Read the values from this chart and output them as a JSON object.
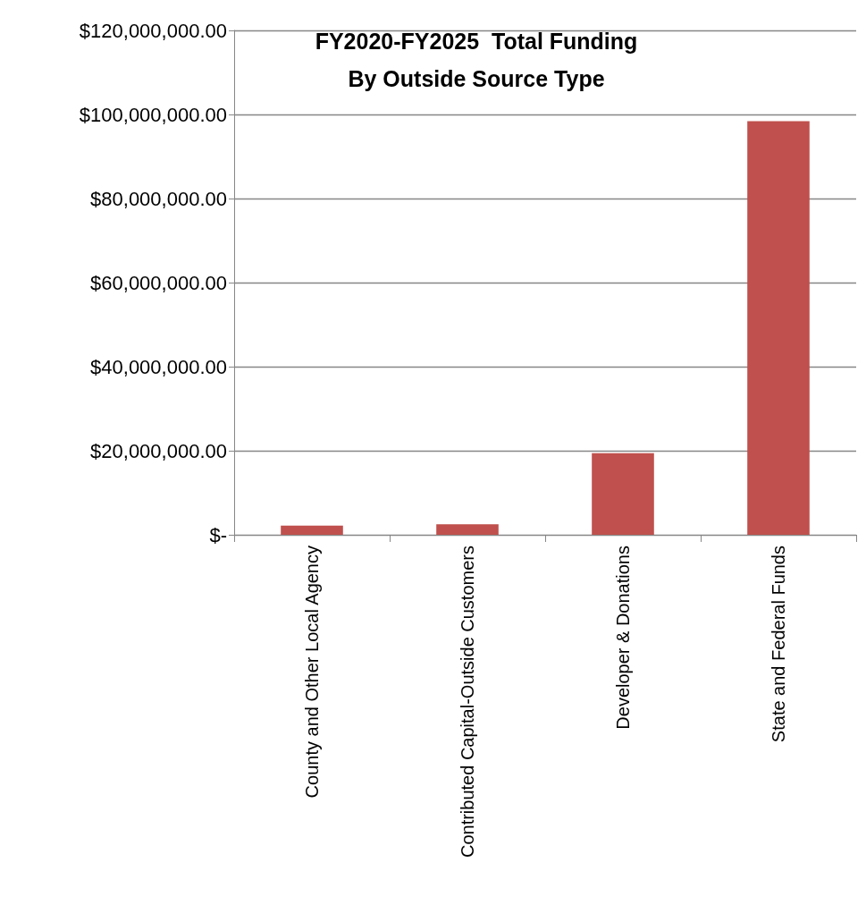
{
  "chart_data": {
    "type": "bar",
    "title": "FY2020-FY2025  Total Funding\nBy Outside Source Type",
    "categories": [
      "County and Other Local Agency",
      "Contributed Capital-Outside Customers",
      "Developer & Donations",
      "State and Federal Funds"
    ],
    "values": [
      2200000,
      2500000,
      19400000,
      98400000
    ],
    "color": "#c0504d",
    "ylim": [
      0,
      120000000
    ],
    "yticks": [
      {
        "value": 0,
        "label": "$-"
      },
      {
        "value": 20000000,
        "label": "$20,000,000.00"
      },
      {
        "value": 40000000,
        "label": "$40,000,000.00"
      },
      {
        "value": 60000000,
        "label": "$60,000,000.00"
      },
      {
        "value": 80000000,
        "label": "$80,000,000.00"
      },
      {
        "value": 100000000,
        "label": "$100,000,000.00"
      },
      {
        "value": 120000000,
        "label": "$120,000,000.00"
      }
    ],
    "grid": "y"
  }
}
